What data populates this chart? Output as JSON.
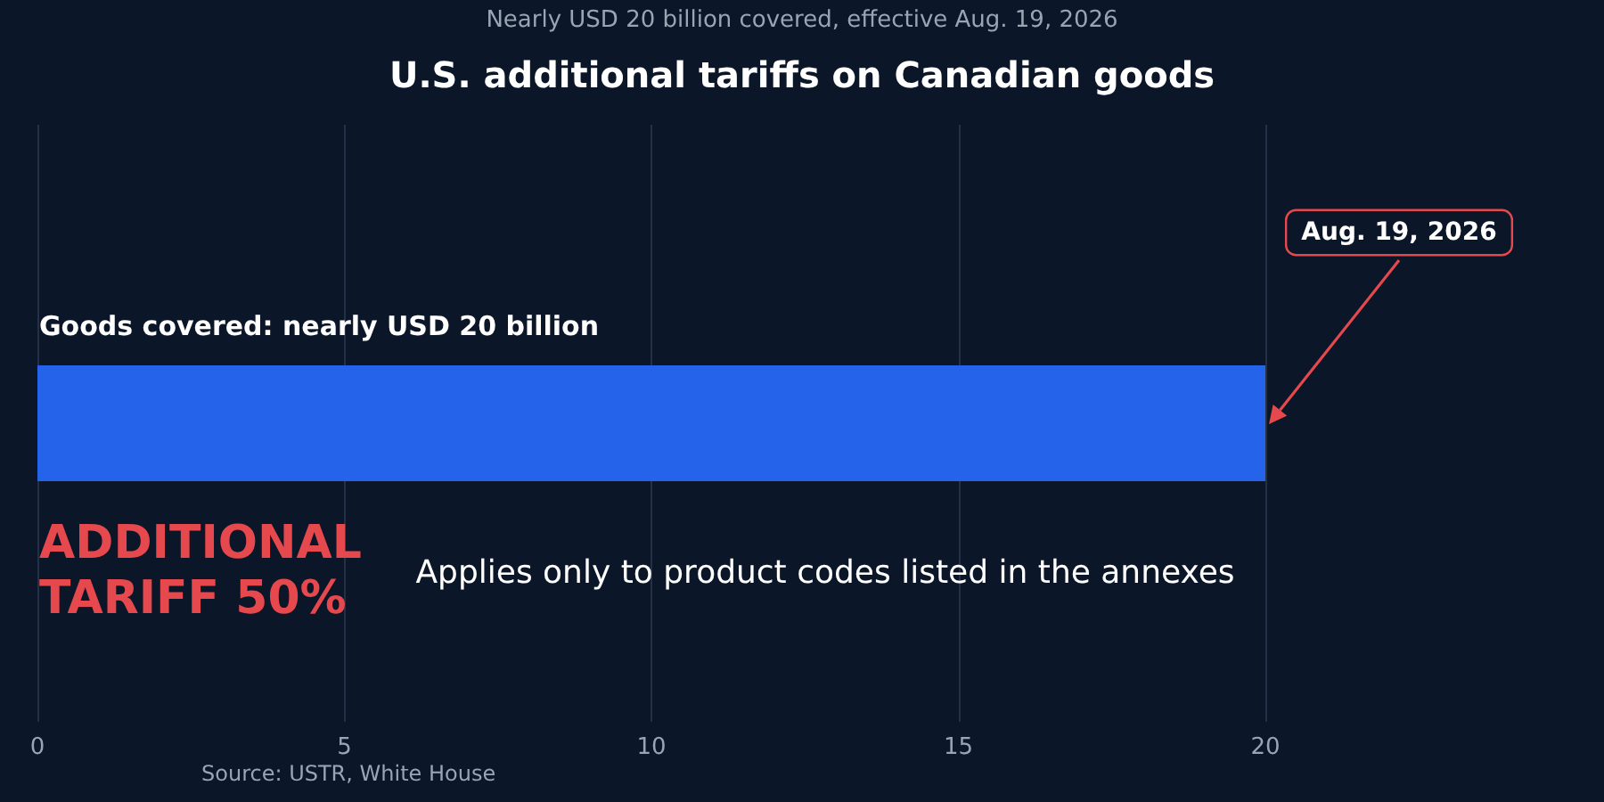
{
  "chart_data": {
    "type": "bar",
    "orientation": "horizontal",
    "title": "U.S. additional tariffs on Canadian goods",
    "subtitle": "Nearly USD 20 billion covered, effective Aug. 19, 2026",
    "categories": [
      null
    ],
    "values": [
      20
    ],
    "color": "#2563eb",
    "xlim": [
      0,
      20
    ],
    "xticks": [
      0,
      5,
      10,
      15,
      20
    ],
    "grid": "x",
    "tick_labels": "x",
    "annotations": [
      "Goods covered: nearly USD 20 billion",
      "ADDITIONAL\nTARIFF 50%",
      "Applies only to product codes listed in the annexes",
      "Aug. 19, 2026",
      "Source: USTR, White House"
    ]
  }
}
